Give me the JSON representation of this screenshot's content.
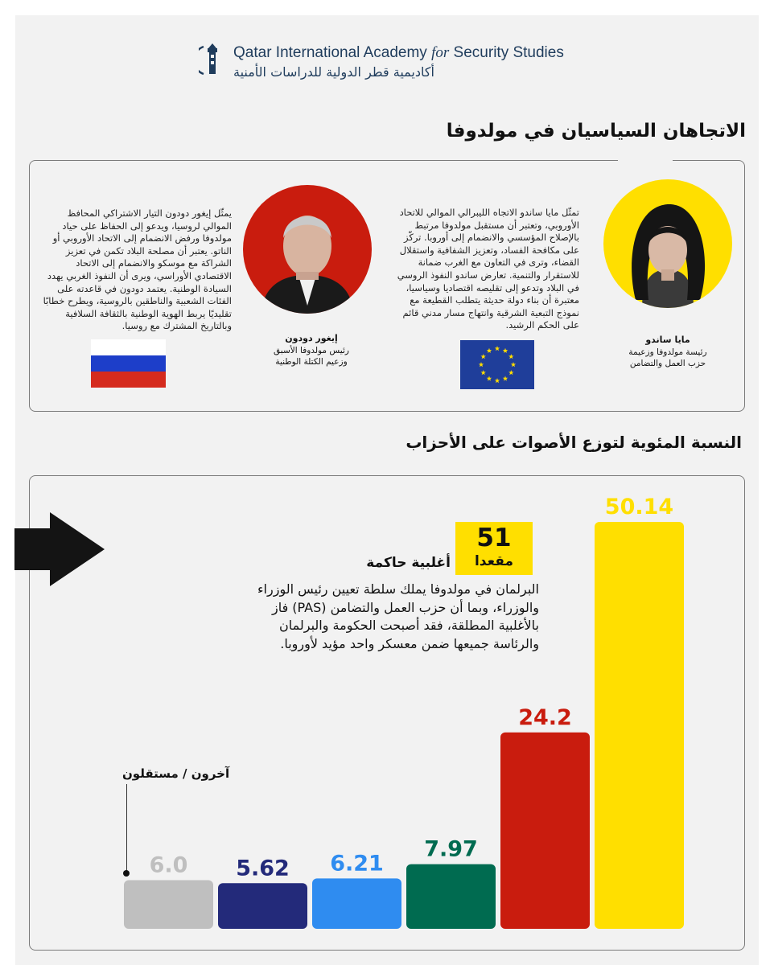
{
  "header": {
    "org_name_en_pre": "Qatar International Academy ",
    "org_name_en_for": "for",
    "org_name_en_post": " Security Studies",
    "org_name_ar": "أكاديمية قطر الدولية للدراسات الأمنية"
  },
  "section1": {
    "title": "الاتجاهان السياسيان في مولدوفا",
    "sandu": {
      "name": "مايا ساندو",
      "role_line1": "رئيسة مولدوفا وزعيمة",
      "role_line2": "حزب العمل والتضامن",
      "description": "تمثّل مايا ساندو الاتجاه الليبرالي الموالي للاتحاد الأوروبي، وتعتبر أن مستقبل مولدوفا مرتبط بالإصلاح المؤسسي والانضمام إلى أوروبا. تركّز على مكافحة الفساد، وتعزيز الشفافية واستقلال القضاء، وترى في التعاون مع الغرب ضمانة للاستقرار والتنمية. تعارض ساندو النفوذ الروسي في البلاد وتدعو إلى تقليصه اقتصاديا وسياسيا، معتبرة أن بناء دولة حديثة يتطلب القطيعة مع نموذج التبعية الشرقية وانتهاج مسار مدني قائم على الحكم الرشيد.",
      "flag": "eu-flag"
    },
    "dodon": {
      "name": "إيغور دودون",
      "role_line1": "رئيس مولدوفا الأسبق",
      "role_line2": "وزعيم الكتلة الوطنية",
      "description": "يمثّل إيغور دودون التيار الاشتراكي المحافظ الموالي لروسيا، ويدعو إلى الحفاظ على حياد مولدوفا ورفض الانضمام إلى الاتحاد الأوروبي أو الناتو. يعتبر أن مصلحة البلاد تكمن في تعزيز الشراكة مع موسكو والانضمام إلى الاتحاد الاقتصادي الأوراسي، ويرى أن النفوذ الغربي يهدد السيادة الوطنية. يعتمد دودون في قاعدته على الفئات الشعبية والناطقين بالروسية، ويطرح خطابًا تقليديًا يربط الهوية الوطنية بالثقافة السلافية وبالتاريخ المشترك مع روسيا.",
      "flag": "russia-flag"
    }
  },
  "section2": {
    "title": "النسبة المئوية لتوزع الأصوات على الأحزاب",
    "seats_number": "51",
    "seats_label": "مقعدا",
    "majority_label": "أغلبية حاكمة",
    "parliament_text": "البرلمان في مولدوفا يملك سلطة تعيين رئيس الوزراء والوزراء، وبما أن حزب العمل والتضامن (PAS) فاز بالأغلبية المطلقة، فقد أصبحت الحكومة والبرلمان والرئاسة جميعها ضمن معسكر واحد مؤيد لأوروبا.",
    "others_label": "آخرون / مستقلون"
  },
  "chart_data": {
    "type": "bar",
    "title": "النسبة المئوية لتوزع الأصوات على الأحزاب",
    "values": [
      6.0,
      5.62,
      6.21,
      7.97,
      24.2,
      50.14
    ],
    "labels": [
      "6.0",
      "5.62",
      "6.21",
      "7.97",
      "24.2",
      "50.14"
    ],
    "colors": [
      "#bfbfbf",
      "#232a7a",
      "#2f8cf0",
      "#006b50",
      "#c91c0e",
      "#ffdf00"
    ],
    "label_colors": [
      "#bfbfbf",
      "#232a7a",
      "#2f8cf0",
      "#006b50",
      "#c91c0e",
      "#ffdf00"
    ],
    "ylim": [
      0,
      50.14
    ],
    "grid": false,
    "legend": "none"
  }
}
